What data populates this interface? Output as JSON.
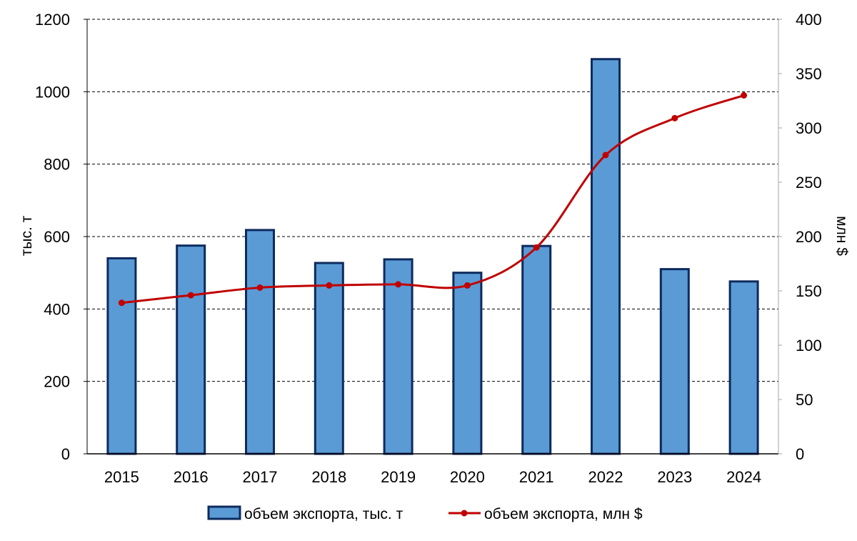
{
  "chart_data": {
    "type": "bar+line",
    "categories": [
      "2015",
      "2016",
      "2017",
      "2018",
      "2019",
      "2020",
      "2021",
      "2022",
      "2023",
      "2024"
    ],
    "series": [
      {
        "name": "объем экспорта, тыс. т",
        "type": "bar",
        "axis": "left",
        "values": [
          540,
          575,
          618,
          527,
          537,
          500,
          574,
          1090,
          510,
          476
        ]
      },
      {
        "name": "объем экспорта, млн $",
        "type": "line",
        "axis": "right",
        "smooth": true,
        "values": [
          139,
          146,
          153,
          155,
          156,
          155,
          190,
          275,
          309,
          330
        ]
      }
    ],
    "ylabel": "тыс. т",
    "y2label": "млн $",
    "ylim": [
      0,
      1200
    ],
    "y2lim": [
      0,
      400
    ],
    "yticks": [
      "0",
      "200",
      "400",
      "600",
      "800",
      "1000",
      "1200"
    ],
    "y2ticks": [
      "0",
      "50",
      "100",
      "150",
      "200",
      "250",
      "300",
      "350",
      "400"
    ],
    "grid": "dashed horizontal",
    "legend": "bottom",
    "colors": {
      "bar_fill": "#5b9bd5",
      "bar_stroke": "#0d2a5e",
      "line": "#c00000",
      "grid": "#000000",
      "axis": "#000000",
      "right_axis": "#a6a6a6"
    }
  }
}
